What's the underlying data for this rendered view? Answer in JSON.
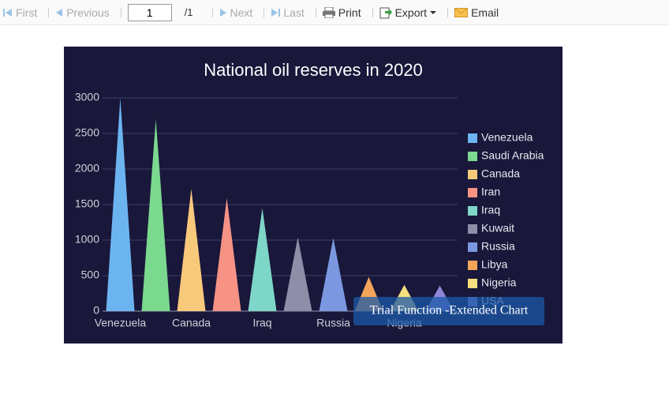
{
  "toolbar": {
    "first": "First",
    "previous": "Previous",
    "page": "1",
    "page_total": "/1",
    "next": "Next",
    "last": "Last",
    "print": "Print",
    "export": "Export",
    "email": "Email"
  },
  "chart_data": {
    "type": "triangle-bar",
    "title": "National oil reserves in 2020",
    "categories": [
      "Venezuela",
      null,
      "Canada",
      null,
      "Iraq",
      null,
      "Russia",
      null,
      "Nigeria",
      null
    ],
    "legend_labels": [
      "Venezuela",
      "Saudi Arabia",
      "Canada",
      "Iran",
      "Iraq",
      "Kuwait",
      "Russia",
      "Libya",
      "Nigeria",
      "USA"
    ],
    "values": [
      3000,
      2700,
      1720,
      1590,
      1450,
      1040,
      1030,
      480,
      370,
      360
    ],
    "colors": [
      "#6cb4f0",
      "#7bd88f",
      "#f9c97b",
      "#f69385",
      "#7ed6c9",
      "#8e8ea8",
      "#7b97e0",
      "#f4a55a",
      "#f7df7f",
      "#8f85d9"
    ],
    "ylim": [
      0,
      3000
    ],
    "yticks": [
      0,
      500,
      1000,
      1500,
      2000,
      2500,
      3000
    ],
    "grid": true,
    "legend_position": "right",
    "watermark": "Trial Function -Extended Chart"
  }
}
